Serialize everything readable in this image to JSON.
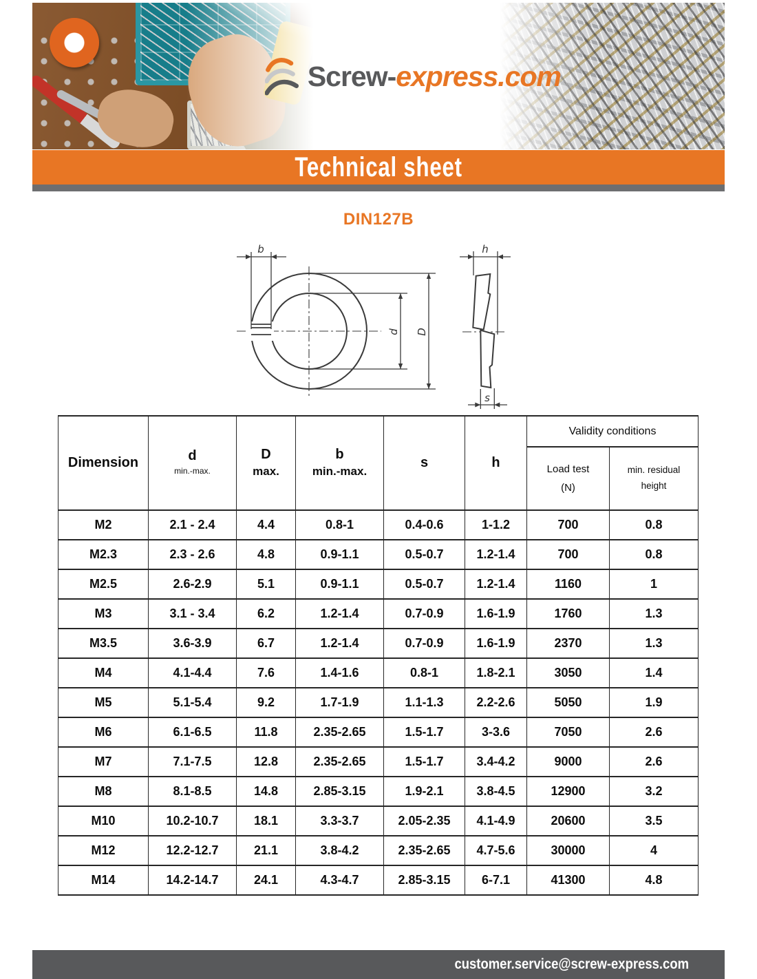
{
  "brand": {
    "logo_text_primary": "Screw-",
    "logo_text_secondary": "express.com"
  },
  "banner": {
    "title": "Technical sheet"
  },
  "sheet": {
    "title": "DIN127B"
  },
  "diagram": {
    "label_b": "b",
    "label_d": "d",
    "label_D": "D",
    "label_h": "h",
    "label_s": "s"
  },
  "table": {
    "headers": {
      "dimension": "Dimension",
      "d_main": "d",
      "d_sub": "min.-max.",
      "D_main": "D",
      "D_sub": "max.",
      "b_main": "b",
      "b_sub": "min.-max.",
      "s": "s",
      "h": "h",
      "validity": "Validity conditions",
      "load_test_line1": "Load test",
      "load_test_line2": "(N)",
      "residual_line1": "min. residual",
      "residual_line2": "height"
    },
    "columns_order": [
      "dimension",
      "d",
      "D",
      "b",
      "s",
      "h",
      "load",
      "residual"
    ],
    "rows": [
      {
        "dimension": "M2",
        "d": "2.1 - 2.4",
        "D": "4.4",
        "b": "0.8-1",
        "s": "0.4-0.6",
        "h": "1-1.2",
        "load": "700",
        "residual": "0.8"
      },
      {
        "dimension": "M2.3",
        "d": "2.3 - 2.6",
        "D": "4.8",
        "b": "0.9-1.1",
        "s": "0.5-0.7",
        "h": "1.2-1.4",
        "load": "700",
        "residual": "0.8"
      },
      {
        "dimension": "M2.5",
        "d": "2.6-2.9",
        "D": "5.1",
        "b": "0.9-1.1",
        "s": "0.5-0.7",
        "h": "1.2-1.4",
        "load": "1160",
        "residual": "1"
      },
      {
        "dimension": "M3",
        "d": "3.1 - 3.4",
        "D": "6.2",
        "b": "1.2-1.4",
        "s": "0.7-0.9",
        "h": "1.6-1.9",
        "load": "1760",
        "residual": "1.3"
      },
      {
        "dimension": "M3.5",
        "d": "3.6-3.9",
        "D": "6.7",
        "b": "1.2-1.4",
        "s": "0.7-0.9",
        "h": "1.6-1.9",
        "load": "2370",
        "residual": "1.3"
      },
      {
        "dimension": "M4",
        "d": "4.1-4.4",
        "D": "7.6",
        "b": "1.4-1.6",
        "s": "0.8-1",
        "h": "1.8-2.1",
        "load": "3050",
        "residual": "1.4"
      },
      {
        "dimension": "M5",
        "d": "5.1-5.4",
        "D": "9.2",
        "b": "1.7-1.9",
        "s": "1.1-1.3",
        "h": "2.2-2.6",
        "load": "5050",
        "residual": "1.9"
      },
      {
        "dimension": "M6",
        "d": "6.1-6.5",
        "D": "11.8",
        "b": "2.35-2.65",
        "s": "1.5-1.7",
        "h": "3-3.6",
        "load": "7050",
        "residual": "2.6"
      },
      {
        "dimension": "M7",
        "d": "7.1-7.5",
        "D": "12.8",
        "b": "2.35-2.65",
        "s": "1.5-1.7",
        "h": "3.4-4.2",
        "load": "9000",
        "residual": "2.6"
      },
      {
        "dimension": "M8",
        "d": "8.1-8.5",
        "D": "14.8",
        "b": "2.85-3.15",
        "s": "1.9-2.1",
        "h": "3.8-4.5",
        "load": "12900",
        "residual": "3.2"
      },
      {
        "dimension": "M10",
        "d": "10.2-10.7",
        "D": "18.1",
        "b": "3.3-3.7",
        "s": "2.05-2.35",
        "h": "4.1-4.9",
        "load": "20600",
        "residual": "3.5"
      },
      {
        "dimension": "M12",
        "d": "12.2-12.7",
        "D": "21.1",
        "b": "3.8-4.2",
        "s": "2.35-2.65",
        "h": "4.7-5.6",
        "load": "30000",
        "residual": "4"
      },
      {
        "dimension": "M14",
        "d": "14.2-14.7",
        "D": "24.1",
        "b": "4.3-4.7",
        "s": "2.85-3.15",
        "h": "6-7.1",
        "load": "41300",
        "residual": "4.8"
      }
    ]
  },
  "footer": {
    "email": "customer.service@screw-express.com"
  },
  "colors": {
    "accent_orange": "#E87624",
    "footer_gray": "#58595B",
    "bar_gray": "#6D6E70",
    "table_border": "#262626"
  }
}
